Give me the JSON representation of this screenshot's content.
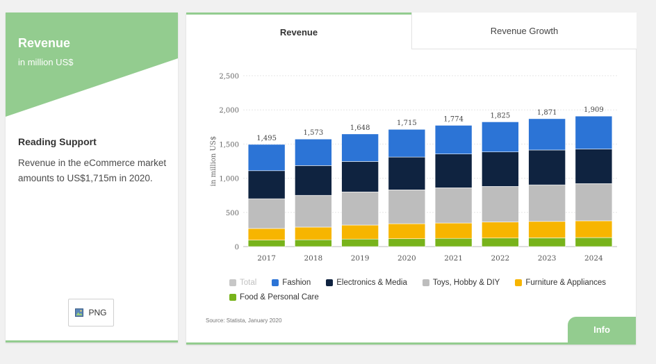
{
  "left_panel": {
    "title": "Revenue",
    "subtitle": "in million US$",
    "reading_support_title": "Reading Support",
    "reading_support_text": "Revenue in the eCommerce market amounts to US$1,715m in 2020.",
    "png_button_label": "PNG",
    "png_icon": "image-icon"
  },
  "tabs": [
    {
      "label": "Revenue",
      "active": true
    },
    {
      "label": "Revenue Growth",
      "active": false
    }
  ],
  "colors": {
    "accent": "#93cc8f",
    "total": "#c7c7c7",
    "fashion": "#2c74d6",
    "electronics_media": "#0f2340",
    "toys_hobby_diy": "#bdbdbd",
    "furniture_appliances": "#f7b500",
    "food_personal_care": "#78b31b"
  },
  "chart_data": {
    "type": "bar",
    "stacked": true,
    "ylabel": "in million US$",
    "ylim": [
      0,
      2500
    ],
    "yticks": [
      0,
      500,
      1000,
      1500,
      2000,
      2500
    ],
    "grid": true,
    "legend_position": "bottom",
    "categories": [
      "2017",
      "2018",
      "2019",
      "2020",
      "2021",
      "2022",
      "2023",
      "2024"
    ],
    "totals": [
      1495,
      1573,
      1648,
      1715,
      1774,
      1825,
      1871,
      1909
    ],
    "total_labels": [
      "1,495",
      "1,573",
      "1,648",
      "1,715",
      "1,774",
      "1,825",
      "1,871",
      "1,909"
    ],
    "series": [
      {
        "name": "Food & Personal Care",
        "color": "#78b31b",
        "values": [
          95,
          100,
          110,
          115,
          120,
          125,
          128,
          132
        ]
      },
      {
        "name": "Furniture & Appliances",
        "color": "#f7b500",
        "values": [
          170,
          185,
          205,
          220,
          225,
          235,
          240,
          245
        ]
      },
      {
        "name": "Toys, Hobby & DIY",
        "color": "#bdbdbd",
        "values": [
          435,
          465,
          485,
          495,
          515,
          520,
          535,
          545
        ]
      },
      {
        "name": "Electronics & Media",
        "color": "#0f2340",
        "values": [
          410,
          435,
          445,
          480,
          495,
          505,
          510,
          505
        ]
      },
      {
        "name": "Fashion",
        "color": "#2c74d6",
        "values": [
          385,
          388,
          403,
          405,
          419,
          440,
          458,
          482
        ]
      }
    ],
    "legend": [
      {
        "name": "Total",
        "color": "#c7c7c7",
        "muted": true
      },
      {
        "name": "Fashion",
        "color": "#2c74d6"
      },
      {
        "name": "Electronics & Media",
        "color": "#0f2340"
      },
      {
        "name": "Toys, Hobby & DIY",
        "color": "#bdbdbd"
      },
      {
        "name": "Furniture & Appliances",
        "color": "#f7b500"
      },
      {
        "name": "Food & Personal Care",
        "color": "#78b31b"
      }
    ]
  },
  "source_text": "Source: Statista, January 2020",
  "info_button_label": "Info"
}
